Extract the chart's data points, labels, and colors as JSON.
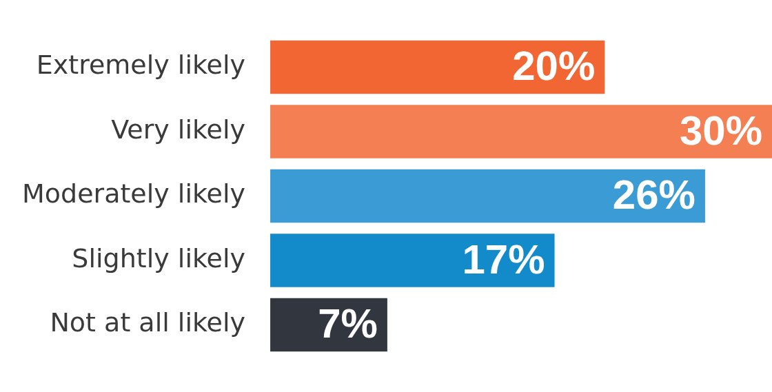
{
  "chart_data": {
    "type": "bar",
    "orientation": "horizontal",
    "categories": [
      "Extremely likely",
      "Very likely",
      "Moderately likely",
      "Slightly likely",
      "Not at all likely"
    ],
    "values": [
      20,
      30,
      26,
      17,
      7
    ],
    "colors": [
      "#f26633",
      "#f37f53",
      "#3a9bd5",
      "#138bcb",
      "#32363f"
    ],
    "value_labels": [
      "20%",
      "30%",
      "26%",
      "17%",
      "7%"
    ]
  }
}
